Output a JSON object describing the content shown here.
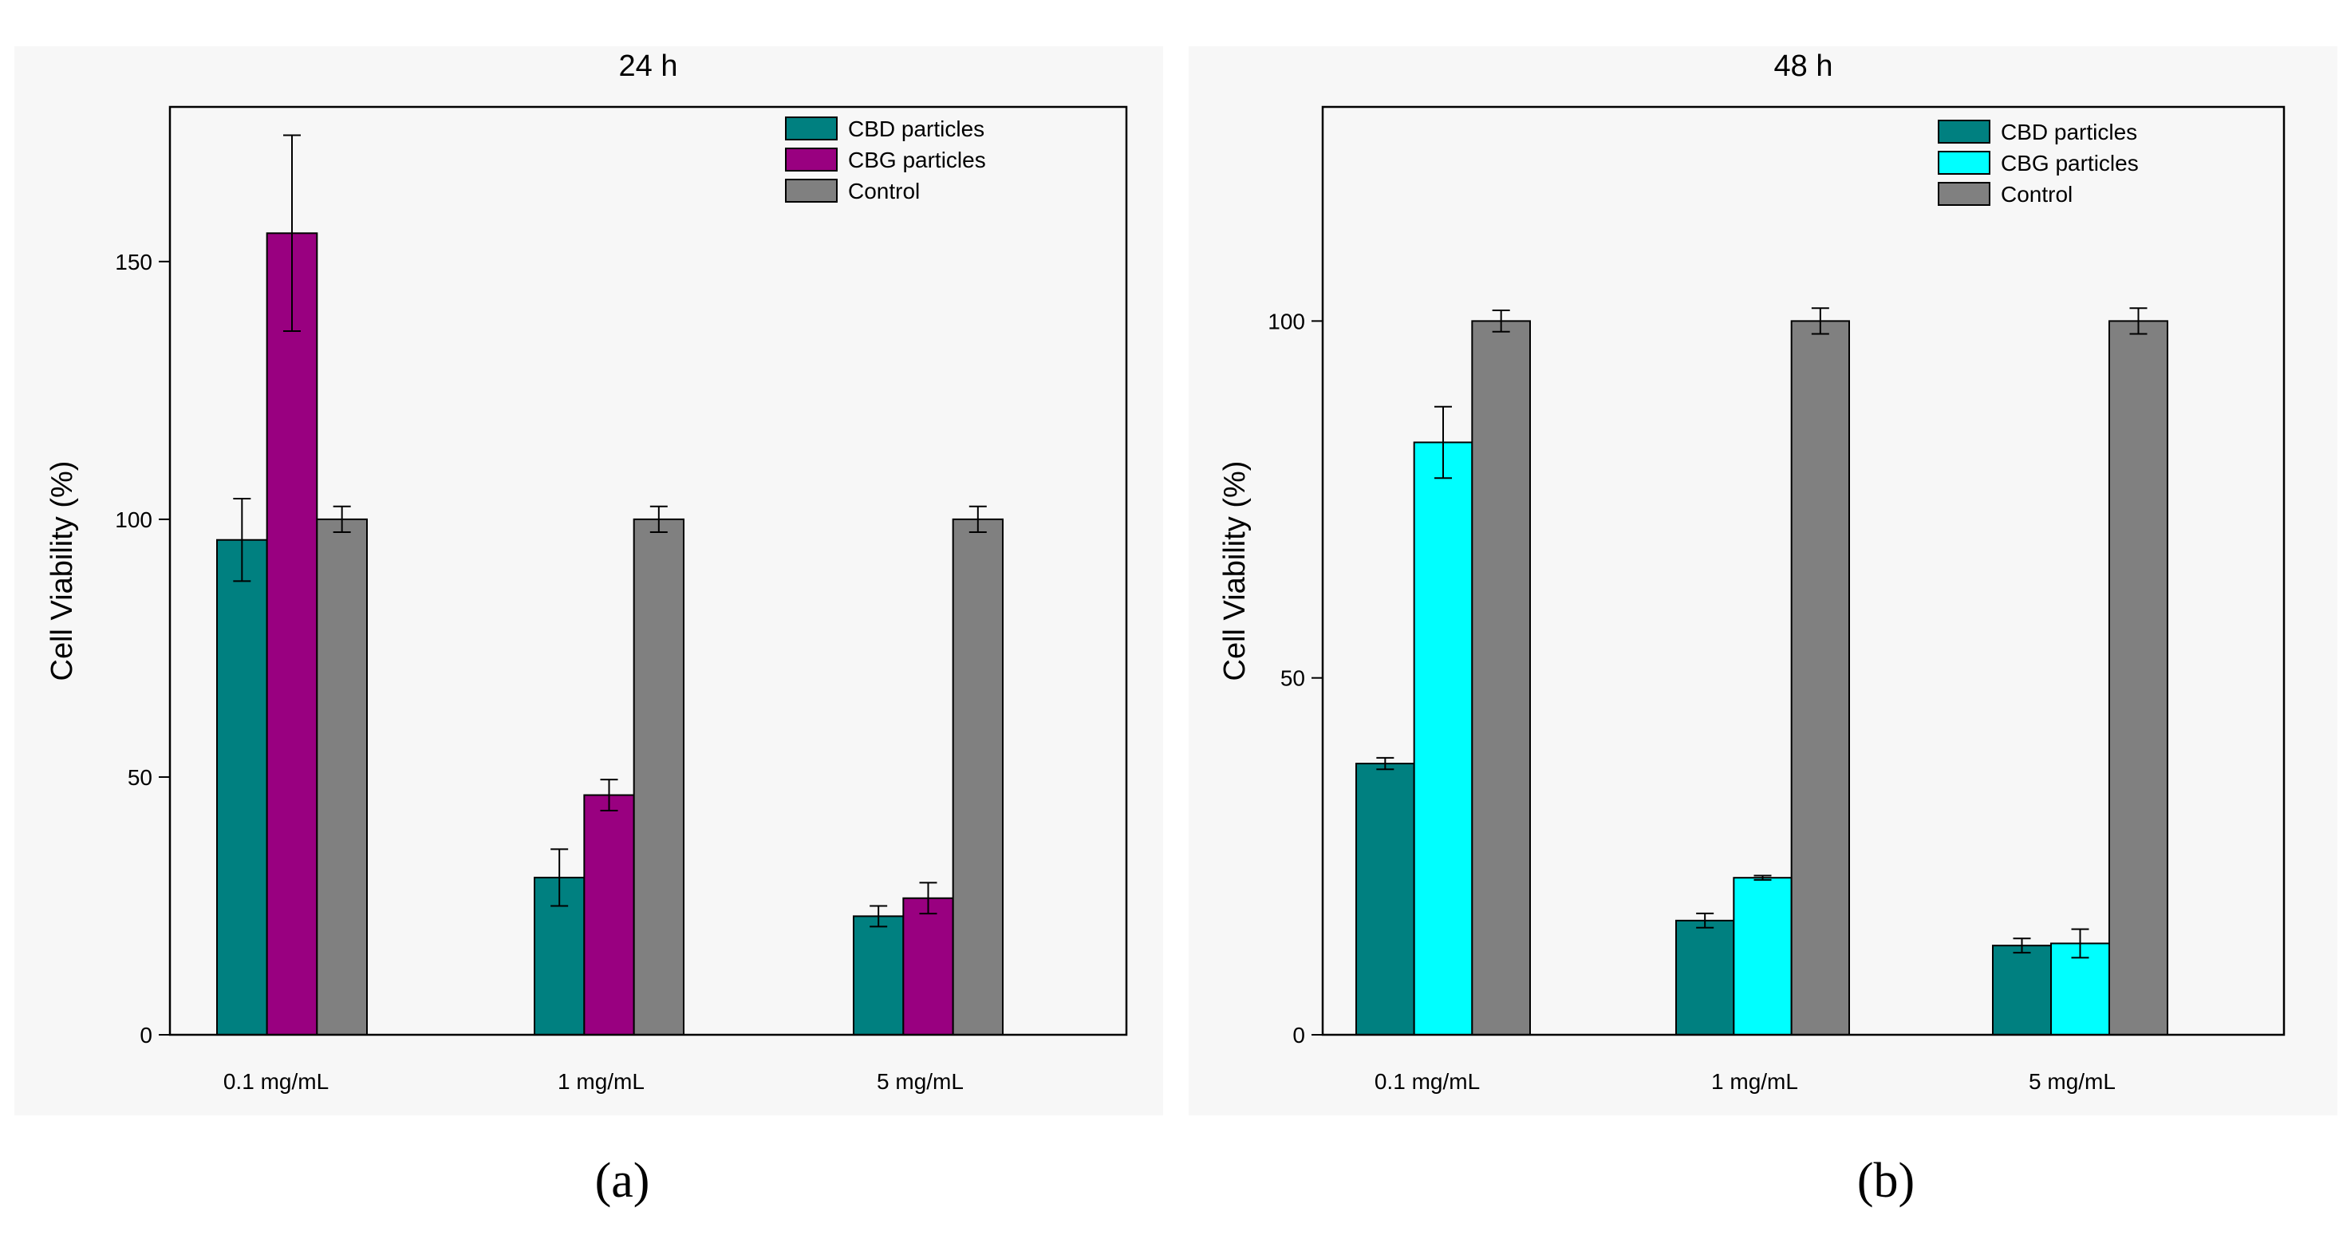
{
  "figure": {
    "panel_labels": [
      "(a)",
      "(b)"
    ]
  },
  "chart_data": [
    {
      "type": "bar",
      "title": "24 h",
      "xlabel": "",
      "ylabel": "Cell Viability (%)",
      "categories": [
        "0.1 mg/mL",
        "1 mg/mL",
        "5 mg/mL"
      ],
      "ylim": [
        0,
        180
      ],
      "yticks": [
        0,
        50,
        100,
        150
      ],
      "grid": false,
      "legend_position": "top-right",
      "series": [
        {
          "name": "CBD particles",
          "color": "#008080",
          "values": [
            96,
            30.5,
            23
          ],
          "errors": [
            8,
            5.5,
            2
          ]
        },
        {
          "name": "CBG particles",
          "color": "#990080",
          "values": [
            155.5,
            46.5,
            26.5
          ],
          "errors": [
            19,
            3,
            3
          ]
        },
        {
          "name": "Control",
          "color": "#808080",
          "values": [
            100,
            100,
            100
          ],
          "errors": [
            2.5,
            2.5,
            2.5
          ]
        }
      ]
    },
    {
      "type": "bar",
      "title": "48 h",
      "xlabel": "",
      "ylabel": "Cell Viability (%)",
      "categories": [
        "0.1 mg/mL",
        "1 mg/mL",
        "5 mg/mL"
      ],
      "ylim": [
        0,
        130
      ],
      "yticks": [
        0,
        50,
        100
      ],
      "grid": false,
      "legend_position": "top-right",
      "series": [
        {
          "name": "CBD particles",
          "color": "#008080",
          "values": [
            38,
            16,
            12.5
          ],
          "errors": [
            0.8,
            1,
            1
          ]
        },
        {
          "name": "CBG particles",
          "color": "#00ffff",
          "values": [
            83,
            22,
            12.8
          ],
          "errors": [
            5,
            0.3,
            2
          ]
        },
        {
          "name": "Control",
          "color": "#808080",
          "values": [
            100,
            100,
            100
          ],
          "errors": [
            1.5,
            1.8,
            1.8
          ]
        }
      ]
    }
  ]
}
